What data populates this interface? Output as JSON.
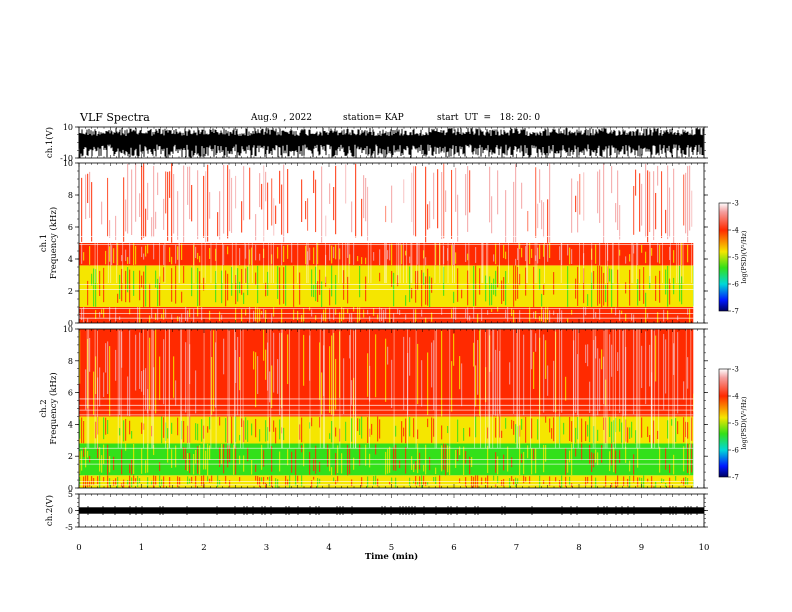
{
  "header": {
    "title": "VLF Spectra",
    "date": "Aug.9  , 2022",
    "station": "station= KAP",
    "start": "start  UT  =   18: 20: 0"
  },
  "chart_data": [
    {
      "type": "line",
      "name": "ch1-waveform",
      "ylabel": "ch.1(V)",
      "ylim": [
        -10,
        10
      ],
      "yticks": [
        "10",
        "-10"
      ],
      "xlim": [
        0,
        10
      ],
      "color": "#000000"
    },
    {
      "type": "heatmap",
      "name": "ch1-spectrogram",
      "ylabel": "ch.1\nFrequency (kHz)",
      "ylim": [
        0,
        10
      ],
      "yticks": [
        "0",
        "2",
        "4",
        "6",
        "8",
        "10"
      ],
      "xlim": [
        0,
        10
      ],
      "data_end_min": 9.83,
      "bands": [
        {
          "from": 0,
          "to": 1.0,
          "level": "red"
        },
        {
          "from": 1.0,
          "to": 3.6,
          "level": "yellow"
        },
        {
          "from": 3.6,
          "to": 5.0,
          "level": "red"
        },
        {
          "from": 5.0,
          "to": 10,
          "level": "pink"
        }
      ],
      "colorbar": {
        "label": "log(PSD)(V²/Hz)",
        "ticks": [
          "-3",
          "-4",
          "-5",
          "-6",
          "-7"
        ],
        "range": [
          -7,
          -3
        ]
      }
    },
    {
      "type": "heatmap",
      "name": "ch2-spectrogram",
      "ylabel": "ch.2\nFrequency (kHz)",
      "ylim": [
        0,
        10
      ],
      "yticks": [
        "0",
        "2",
        "4",
        "6",
        "8",
        "10"
      ],
      "xlim": [
        0,
        10
      ],
      "data_end_min": 9.83,
      "bands": [
        {
          "from": 0,
          "to": 0.8,
          "level": "yellow"
        },
        {
          "from": 0.8,
          "to": 2.8,
          "level": "green"
        },
        {
          "from": 2.8,
          "to": 4.5,
          "level": "yellow"
        },
        {
          "from": 4.5,
          "to": 10,
          "level": "red"
        }
      ],
      "colorbar": {
        "label": "log(PSD)(V²/Hz)",
        "ticks": [
          "-3",
          "-4",
          "-5",
          "-6",
          "-7"
        ],
        "range": [
          -7,
          -3
        ]
      }
    },
    {
      "type": "line",
      "name": "ch2-waveform",
      "ylabel": "ch.2(V)",
      "ylim": [
        -5,
        5
      ],
      "yticks": [
        "5",
        "0",
        "-5"
      ],
      "xlim": [
        0,
        10
      ],
      "color": "#000000"
    }
  ],
  "xaxis": {
    "label": "Time  (min)",
    "ticks": [
      "0",
      "1",
      "2",
      "3",
      "4",
      "5",
      "6",
      "7",
      "8",
      "9",
      "10"
    ]
  },
  "colors": {
    "white": "#ffffff",
    "pink": "#f4a0a0",
    "red": "#ff2a00",
    "yellow": "#f5e600",
    "green": "#33e01a",
    "cyan": "#00d8d8",
    "blue": "#0018ff",
    "navy": "#000060"
  }
}
